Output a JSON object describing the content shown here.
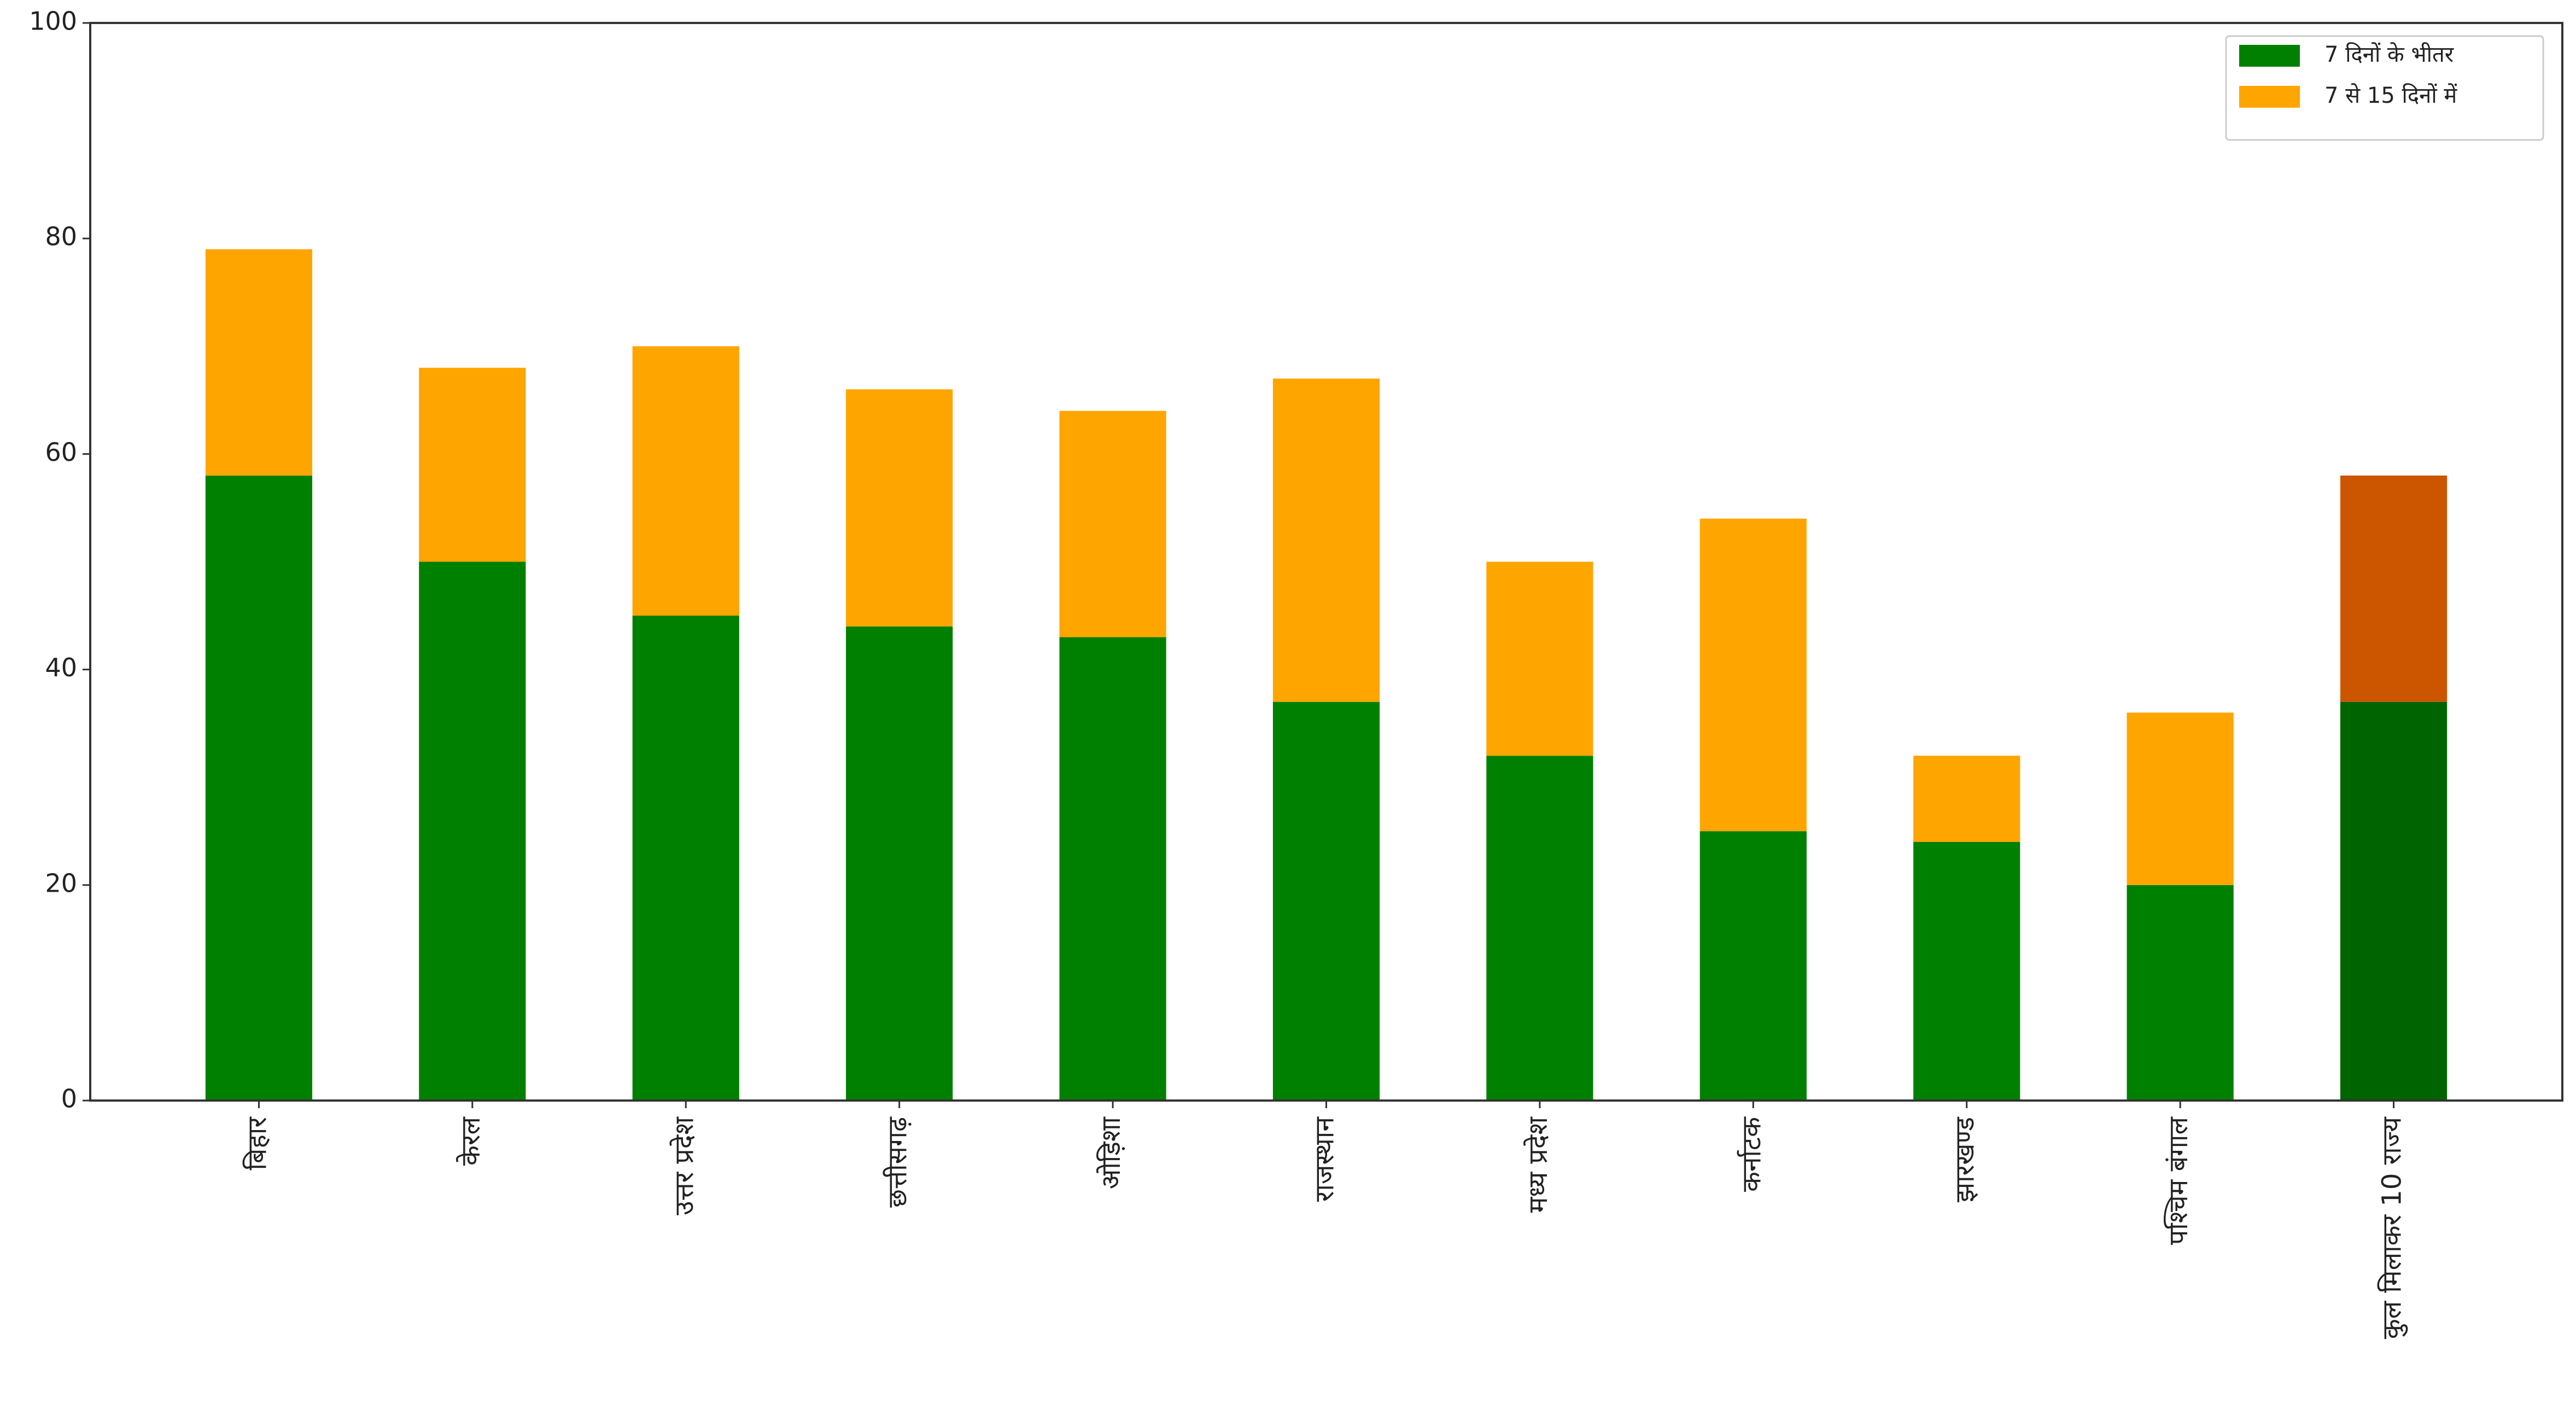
{
  "chart_data": {
    "type": "stacked-bar",
    "categories": [
      "बिहार",
      "केरल",
      "उत्तर प्रदेश",
      "छत्तीसगढ़",
      "ओड़िशा",
      "राजस्थान",
      "मध्य प्रदेश",
      "कर्नाटक",
      "झारखण्ड",
      "पश्चिम बंगाल",
      "कुल मिलाकर 10 राज्य"
    ],
    "series": [
      {
        "name": "7 दिनों के भीतर",
        "color": "#008000",
        "values": [
          58,
          50,
          45,
          44,
          43,
          37,
          32,
          25,
          24,
          20,
          37
        ],
        "colors": [
          "#008000",
          "#008000",
          "#008000",
          "#008000",
          "#008000",
          "#008000",
          "#008000",
          "#008000",
          "#008000",
          "#008000",
          "#006400"
        ]
      },
      {
        "name": "7 से 15 दिनों में",
        "color": "#ffa500",
        "values": [
          21,
          18,
          25,
          22,
          21,
          30,
          18,
          29,
          8,
          16,
          21
        ],
        "colors": [
          "#ffa500",
          "#ffa500",
          "#ffa500",
          "#ffa500",
          "#ffa500",
          "#ffa500",
          "#ffa500",
          "#ffa500",
          "#ffa500",
          "#ffa500",
          "#cc5500"
        ]
      }
    ],
    "ylim": [
      0,
      100
    ],
    "yticks": [
      0,
      20,
      40,
      60,
      80,
      100
    ],
    "grid": false,
    "legend": "upper right"
  }
}
